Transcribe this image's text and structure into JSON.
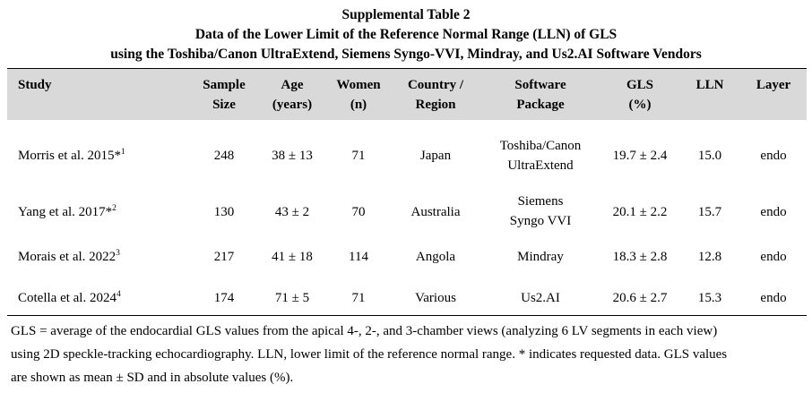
{
  "title": {
    "line1": "Supplemental Table 2",
    "line2": "Data of the Lower Limit of the Reference Normal Range (LLN) of GLS",
    "line3": "using the Toshiba/Canon UltraExtend, Siemens Syngo-VVI, Mindray, and Us2.AI Software Vendors"
  },
  "headers": {
    "study": "Study",
    "sample": [
      "Sample",
      "Size"
    ],
    "age": [
      "Age",
      "(years)"
    ],
    "women": [
      "Women",
      "(n)"
    ],
    "country": [
      "Country /",
      "Region"
    ],
    "software": [
      "Software",
      "Package"
    ],
    "gls": [
      "GLS",
      "(%)"
    ],
    "lln": "LLN",
    "layer": "Layer"
  },
  "rows": [
    {
      "study": "Morris et al. 2015*",
      "ref": "1",
      "sample": "248",
      "age": "38 ± 13",
      "women": "71",
      "country": "Japan",
      "software": [
        "Toshiba/Canon",
        "UltraExtend"
      ],
      "gls": "19.7 ± 2.4",
      "lln": "15.0",
      "layer": "endo"
    },
    {
      "study": "Yang et al. 2017*",
      "ref": "2",
      "sample": "130",
      "age": "43 ± 2",
      "women": "70",
      "country": "Australia",
      "software": [
        "Siemens",
        "Syngo VVI"
      ],
      "gls": "20.1 ± 2.2",
      "lln": "15.7",
      "layer": "endo"
    },
    {
      "study": "Morais et al. 2022",
      "ref": "3",
      "sample": "217",
      "age": "41 ± 18",
      "women": "114",
      "country": "Angola",
      "software": [
        "Mindray"
      ],
      "gls": "18.3 ± 2.8",
      "lln": "12.8",
      "layer": "endo"
    },
    {
      "study": "Cotella et al. 2024",
      "ref": "4",
      "sample": "174",
      "age": "71 ± 5",
      "women": "71",
      "country": "Various",
      "software": [
        "Us2.AI"
      ],
      "gls": "20.6 ± 2.7",
      "lln": "15.3",
      "layer": "endo"
    }
  ],
  "footnote": [
    "GLS = average of the endocardial GLS values from the apical 4-, 2-, and 3-chamber views (analyzing 6 LV segments in each view)",
    "using 2D speckle-tracking echocardiography. LLN, lower limit of the reference normal range. * indicates requested data. GLS values",
    "are shown as mean ± SD and in absolute values (%)."
  ],
  "colors": {
    "header_background": "#d9d9d9",
    "text": "#000000"
  }
}
